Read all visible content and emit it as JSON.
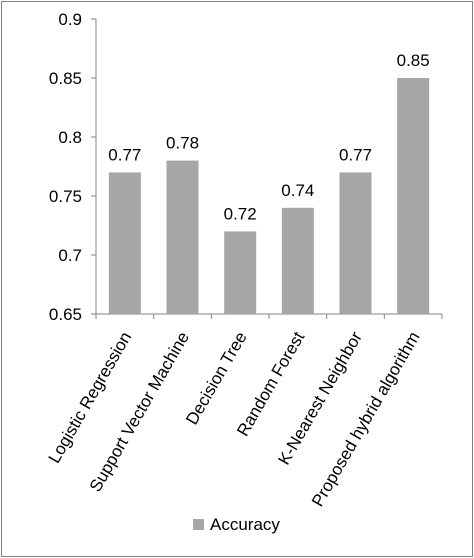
{
  "chart_data": {
    "type": "bar",
    "categories": [
      "Logistic Regression",
      "Support Vector Machine",
      "Decision Tree",
      "Random Forest",
      "K-Nearest Neighbor",
      "Proposed hybrid algorithm"
    ],
    "series": [
      {
        "name": "Accuracy",
        "values": [
          0.77,
          0.78,
          0.72,
          0.74,
          0.77,
          0.85
        ],
        "labels": [
          "0.77",
          "0.78",
          "0.72",
          "0.74",
          "0.77",
          "0.85"
        ],
        "color": "#a6a6a6"
      }
    ],
    "ylim": [
      0.65,
      0.9
    ],
    "yticks": [
      0.65,
      0.7,
      0.75,
      0.8,
      0.85,
      0.9
    ],
    "ytick_labels": [
      "0.65",
      "0.7",
      "0.75",
      "0.8",
      "0.85",
      "0.9"
    ],
    "grid": false,
    "legend_position": "bottom"
  }
}
